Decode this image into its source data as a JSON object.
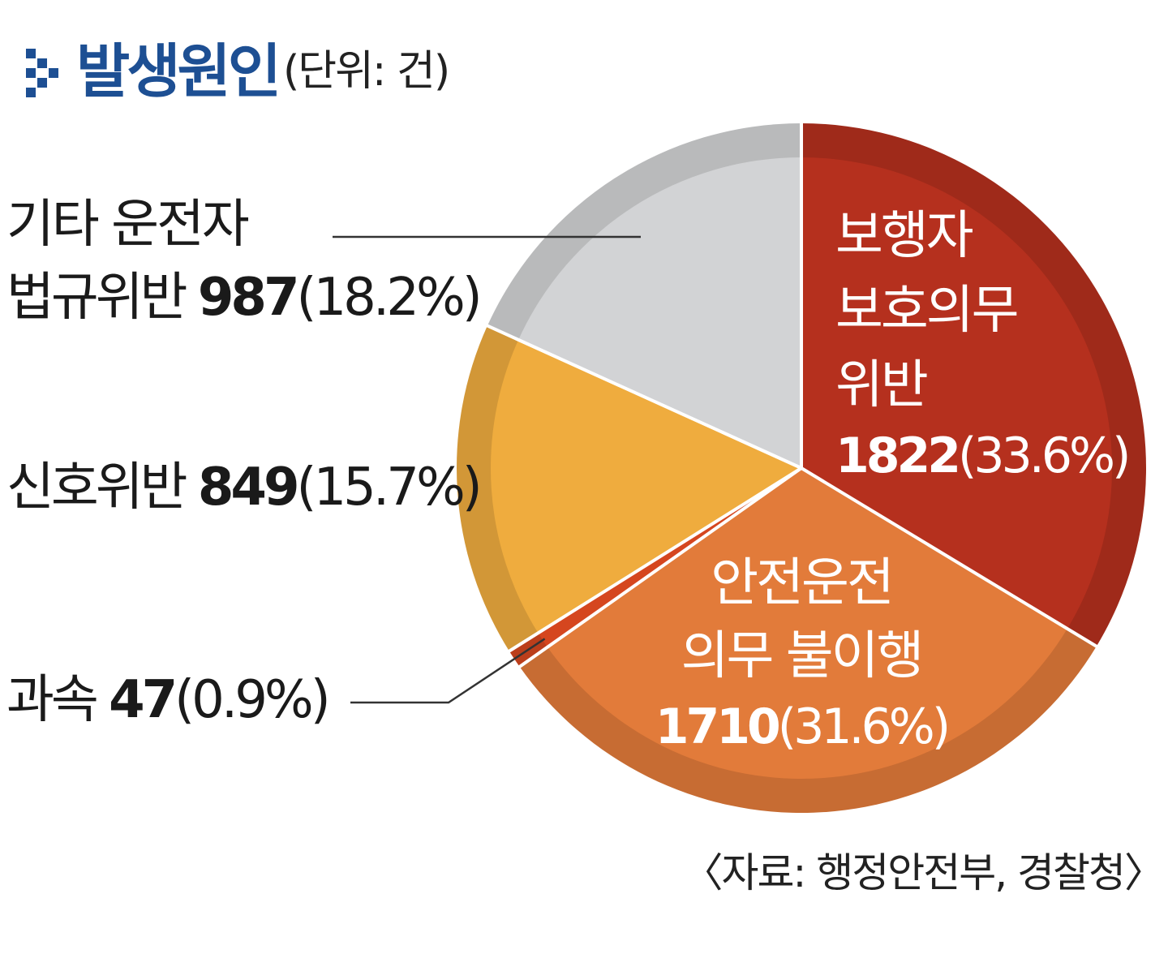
{
  "header": {
    "title": "발생원인",
    "unit": "(단위: 건)",
    "icon": "chevron-right-icon",
    "title_color": "#1d4f93"
  },
  "source": "〈자료: 행정안전부, 경찰청〉",
  "chart_data": {
    "type": "pie",
    "title": "발생원인",
    "unit": "건",
    "slices": [
      {
        "label_lines": [
          "보행자",
          "보호의무",
          "위반"
        ],
        "value": 1822,
        "value_text": "1822",
        "percent": 33.6,
        "percent_text": "(33.6%)",
        "color": "#b5301e",
        "label_position": "inside",
        "text_color": "#ffffff"
      },
      {
        "label_lines": [
          "안전운전",
          "의무 불이행"
        ],
        "value": 1710,
        "value_text": "1710",
        "percent": 31.6,
        "percent_text": "(31.6%)",
        "color": "#e27b3a",
        "label_position": "inside",
        "text_color": "#ffffff"
      },
      {
        "label_lines": [
          "과속"
        ],
        "value": 47,
        "value_text": "47",
        "percent": 0.9,
        "percent_text": "(0.9%)",
        "color": "#d5461f",
        "label_position": "outside-left",
        "text_color": "#1a1a1a"
      },
      {
        "label_lines": [
          "신호위반"
        ],
        "value": 849,
        "value_text": "849",
        "percent": 15.7,
        "percent_text": "(15.7%)",
        "color": "#efac3e",
        "label_position": "outside-left",
        "text_color": "#1a1a1a"
      },
      {
        "label_lines": [
          "기타 운전자",
          "법규위반"
        ],
        "value": 987,
        "value_text": "987",
        "percent": 18.2,
        "percent_text": "(18.2%)",
        "color": "#d2d3d5",
        "label_position": "outside-left",
        "text_color": "#1a1a1a"
      }
    ]
  }
}
